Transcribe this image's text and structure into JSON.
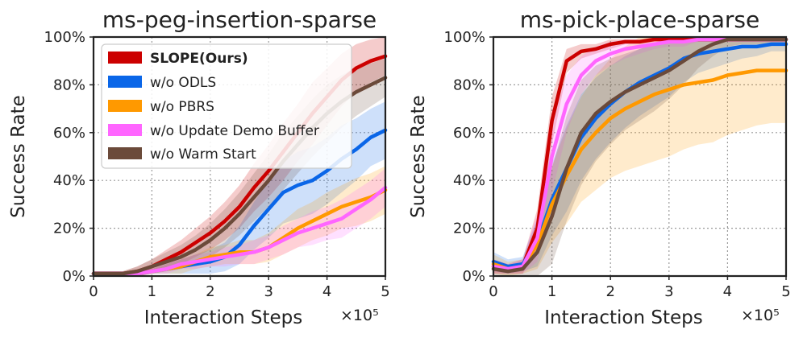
{
  "figure": {
    "legend": {
      "entries": [
        {
          "label": "SLOPE(Ours)",
          "color": "#cc0000",
          "bold": true
        },
        {
          "label": "w/o ODLS",
          "color": "#0a66e8",
          "bold": false
        },
        {
          "label": "w/o PBRS",
          "color": "#ff9900",
          "bold": false
        },
        {
          "label": "w/o Update Demo Buffer",
          "color": "#ff66ff",
          "bold": false
        },
        {
          "label": "w/o Warm Start",
          "color": "#6b4a3a",
          "bold": false
        }
      ]
    }
  },
  "chart_data": [
    {
      "type": "line",
      "title": "ms-peg-insertion-sparse",
      "xlabel": "Interaction Steps",
      "ylabel": "Success Rate",
      "x_multiplier": "×10⁵",
      "xlim": [
        0,
        5
      ],
      "ylim": [
        0,
        100
      ],
      "x_ticks": [
        0,
        1,
        2,
        3,
        4,
        5
      ],
      "y_ticks": [
        0,
        20,
        40,
        60,
        80,
        100
      ],
      "y_tick_labels": [
        "0%",
        "20%",
        "40%",
        "60%",
        "80%",
        "100%"
      ],
      "grid": true,
      "legend_position": "top-left",
      "x": [
        0,
        0.25,
        0.5,
        0.75,
        1,
        1.25,
        1.5,
        1.75,
        2,
        2.25,
        2.5,
        2.75,
        3,
        3.25,
        3.5,
        3.75,
        4,
        4.25,
        4.5,
        4.75,
        5
      ],
      "series": [
        {
          "name": "SLOPE(Ours)",
          "color": "#cc0000",
          "values": [
            1,
            1,
            1,
            2,
            4,
            7,
            10,
            14,
            18,
            23,
            29,
            37,
            44,
            52,
            60,
            68,
            75,
            82,
            87,
            90,
            92
          ],
          "band": [
            1,
            1,
            1,
            2,
            3,
            4,
            5,
            6,
            7,
            8,
            9,
            10,
            11,
            12,
            12,
            13,
            12,
            11,
            10,
            9,
            8
          ]
        },
        {
          "name": "w/o ODLS",
          "color": "#0a66e8",
          "values": [
            1,
            1,
            1,
            1,
            2,
            3,
            4,
            5,
            6,
            8,
            13,
            21,
            28,
            35,
            38,
            40,
            44,
            49,
            53,
            58,
            61
          ],
          "band": [
            1,
            1,
            1,
            1,
            1,
            2,
            3,
            4,
            5,
            6,
            8,
            10,
            12,
            13,
            14,
            14,
            14,
            14,
            13,
            12,
            12
          ]
        },
        {
          "name": "w/o PBRS",
          "color": "#ff9900",
          "values": [
            1,
            1,
            1,
            1,
            2,
            3,
            4,
            6,
            8,
            9,
            10,
            10,
            12,
            16,
            20,
            23,
            26,
            29,
            31,
            33,
            36
          ],
          "band": [
            1,
            1,
            1,
            1,
            1,
            2,
            3,
            3,
            4,
            4,
            5,
            5,
            6,
            7,
            8,
            8,
            9,
            9,
            10,
            10,
            10
          ]
        },
        {
          "name": "w/o Update Demo Buffer",
          "color": "#ff66ff",
          "values": [
            1,
            1,
            1,
            1,
            2,
            3,
            5,
            6,
            7,
            8,
            9,
            10,
            12,
            15,
            18,
            20,
            22,
            24,
            28,
            32,
            37
          ],
          "band": [
            1,
            1,
            1,
            1,
            1,
            2,
            2,
            3,
            3,
            4,
            4,
            5,
            5,
            6,
            6,
            7,
            7,
            8,
            8,
            8,
            8
          ]
        },
        {
          "name": "w/o Warm Start",
          "color": "#6b4a3a",
          "values": [
            1,
            1,
            1,
            2,
            4,
            6,
            8,
            11,
            15,
            20,
            26,
            33,
            40,
            48,
            55,
            62,
            68,
            73,
            77,
            80,
            83
          ],
          "band": [
            1,
            1,
            1,
            2,
            3,
            4,
            5,
            6,
            7,
            8,
            9,
            10,
            11,
            12,
            12,
            12,
            12,
            11,
            10,
            9,
            8
          ]
        }
      ]
    },
    {
      "type": "line",
      "title": "ms-pick-place-sparse",
      "xlabel": "Interaction Steps",
      "ylabel": "Success Rate",
      "x_multiplier": "×10⁵",
      "xlim": [
        0,
        5
      ],
      "ylim": [
        0,
        100
      ],
      "x_ticks": [
        0,
        1,
        2,
        3,
        4,
        5
      ],
      "y_ticks": [
        0,
        20,
        40,
        60,
        80,
        100
      ],
      "y_tick_labels": [
        "0%",
        "20%",
        "40%",
        "60%",
        "80%",
        "100%"
      ],
      "grid": true,
      "x": [
        0,
        0.25,
        0.5,
        0.75,
        1,
        1.25,
        1.5,
        1.75,
        2,
        2.25,
        2.5,
        2.75,
        3,
        3.25,
        3.5,
        3.75,
        4,
        4.25,
        4.5,
        4.75,
        5
      ],
      "series": [
        {
          "name": "SLOPE(Ours)",
          "color": "#cc0000",
          "values": [
            4,
            3,
            4,
            20,
            65,
            90,
            94,
            95,
            97,
            98,
            98,
            99,
            99,
            99,
            99,
            99,
            99,
            99,
            99,
            99,
            99
          ],
          "band": [
            3,
            2,
            3,
            8,
            10,
            5,
            3,
            2,
            2,
            1,
            1,
            1,
            1,
            1,
            1,
            1,
            1,
            1,
            1,
            1,
            1
          ]
        },
        {
          "name": "w/o ODLS",
          "color": "#0a66e8",
          "values": [
            6,
            4,
            5,
            14,
            32,
            45,
            58,
            66,
            72,
            77,
            81,
            84,
            87,
            91,
            93,
            94,
            95,
            96,
            96,
            97,
            97
          ],
          "band": [
            4,
            3,
            3,
            10,
            15,
            18,
            18,
            17,
            16,
            15,
            14,
            13,
            12,
            10,
            8,
            7,
            6,
            5,
            4,
            3,
            3
          ]
        },
        {
          "name": "w/o PBRS",
          "color": "#ff9900",
          "values": [
            5,
            3,
            4,
            13,
            30,
            42,
            53,
            60,
            66,
            70,
            73,
            76,
            78,
            80,
            81,
            82,
            84,
            85,
            86,
            86,
            86
          ],
          "band": [
            4,
            3,
            3,
            10,
            16,
            20,
            22,
            24,
            25,
            26,
            27,
            28,
            28,
            27,
            26,
            26,
            25,
            24,
            23,
            22,
            22
          ]
        },
        {
          "name": "w/o Update Demo Buffer",
          "color": "#ff66ff",
          "values": [
            4,
            3,
            4,
            16,
            50,
            72,
            84,
            90,
            93,
            95,
            96,
            97,
            98,
            98,
            99,
            99,
            99,
            99,
            99,
            99,
            99
          ],
          "band": [
            3,
            2,
            3,
            10,
            15,
            12,
            8,
            6,
            5,
            4,
            3,
            2,
            2,
            2,
            1,
            1,
            1,
            1,
            1,
            1,
            1
          ]
        },
        {
          "name": "w/o Warm Start",
          "color": "#6b4a3a",
          "values": [
            3,
            2,
            3,
            10,
            25,
            45,
            60,
            68,
            73,
            77,
            80,
            83,
            86,
            90,
            94,
            97,
            99,
            99,
            99,
            99,
            99
          ],
          "band": [
            3,
            2,
            3,
            10,
            20,
            22,
            22,
            20,
            18,
            16,
            15,
            14,
            12,
            10,
            7,
            5,
            3,
            2,
            2,
            2,
            2
          ]
        }
      ]
    }
  ]
}
